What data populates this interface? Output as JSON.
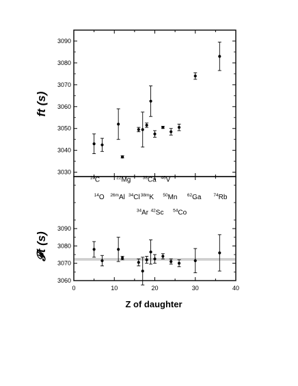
{
  "chart_data": [
    {
      "type": "scatter",
      "panel": "top",
      "title": "",
      "xlabel": "",
      "ylabel": "ft (s)",
      "xlim": [
        0,
        40
      ],
      "ylim": [
        3028,
        3095
      ],
      "yticks": [
        3030,
        3040,
        3050,
        3060,
        3070,
        3080,
        3090
      ],
      "grid": false,
      "series": [
        {
          "points": [
            {
              "x": 5,
              "y": 3043,
              "err": 4.5
            },
            {
              "x": 7,
              "y": 3042.5,
              "err": 3
            },
            {
              "x": 11,
              "y": 3052,
              "err": 7
            },
            {
              "x": 12,
              "y": 3037,
              "err": 0.5
            },
            {
              "x": 16,
              "y": 3049.5,
              "err": 1
            },
            {
              "x": 17,
              "y": 3049.5,
              "err": 8
            },
            {
              "x": 18,
              "y": 3051.5,
              "err": 1
            },
            {
              "x": 19,
              "y": 3062.5,
              "err": 7
            },
            {
              "x": 20,
              "y": 3047.5,
              "err": 1.5
            },
            {
              "x": 22,
              "y": 3050.5,
              "err": 0.5
            },
            {
              "x": 24,
              "y": 3048.5,
              "err": 1.5
            },
            {
              "x": 26,
              "y": 3050.5,
              "err": 1.5
            },
            {
              "x": 30,
              "y": 3074,
              "err": 1.5
            },
            {
              "x": 36,
              "y": 3083,
              "err": 6.5
            }
          ]
        }
      ]
    },
    {
      "type": "scatter",
      "panel": "bottom",
      "title": "",
      "xlabel": "Z of daughter",
      "ylabel": "𝓕t (s)",
      "xlim": [
        0,
        40
      ],
      "ylim": [
        3060,
        3120
      ],
      "yticks": [
        3060,
        3070,
        3080,
        3090
      ],
      "xticks": [
        0,
        10,
        20,
        30,
        40
      ],
      "grid": false,
      "band": {
        "y_low": 3071.5,
        "y_high": 3073.0
      },
      "series": [
        {
          "points": [
            {
              "x": 5,
              "y": 3078,
              "err": 4.5
            },
            {
              "x": 7,
              "y": 3071.5,
              "err": 3
            },
            {
              "x": 11,
              "y": 3078,
              "err": 7
            },
            {
              "x": 12,
              "y": 3073,
              "err": 1
            },
            {
              "x": 16,
              "y": 3070.5,
              "err": 2
            },
            {
              "x": 17,
              "y": 3065.5,
              "err": 8
            },
            {
              "x": 18,
              "y": 3072,
              "err": 2
            },
            {
              "x": 19,
              "y": 3076.5,
              "err": 7
            },
            {
              "x": 20,
              "y": 3072.5,
              "err": 2.5
            },
            {
              "x": 22,
              "y": 3074,
              "err": 1.5
            },
            {
              "x": 24,
              "y": 3071,
              "err": 1.5
            },
            {
              "x": 26,
              "y": 3070,
              "err": 2
            },
            {
              "x": 30,
              "y": 3071.5,
              "err": 7
            },
            {
              "x": 36,
              "y": 3076,
              "err": 10.5
            }
          ]
        }
      ],
      "annotations": [
        {
          "sup": "10",
          "text": "C",
          "x": 4,
          "y": 3117
        },
        {
          "sup": "22",
          "text": "Mg",
          "x": 10.5,
          "y": 3117
        },
        {
          "sup": "38",
          "text": "Ca",
          "x": 17,
          "y": 3117
        },
        {
          "sup": "46",
          "text": "V",
          "x": 21.5,
          "y": 3117
        },
        {
          "sup": "14",
          "text": "O",
          "x": 5,
          "y": 3107
        },
        {
          "sup": "26m",
          "text": "Al",
          "x": 9,
          "y": 3107
        },
        {
          "sup": "34",
          "text": "Cl",
          "x": 13.5,
          "y": 3107
        },
        {
          "sup": "38m",
          "text": "K",
          "x": 16.5,
          "y": 3107
        },
        {
          "sup": "50",
          "text": "Mn",
          "x": 22,
          "y": 3107
        },
        {
          "sup": "62",
          "text": "Ga",
          "x": 28,
          "y": 3107
        },
        {
          "sup": "74",
          "text": "Rb",
          "x": 34.5,
          "y": 3107
        },
        {
          "sup": "34",
          "text": "Ar",
          "x": 15.5,
          "y": 3098
        },
        {
          "sup": "42",
          "text": "Sc",
          "x": 19,
          "y": 3098
        },
        {
          "sup": "54",
          "text": "Co",
          "x": 24.5,
          "y": 3098
        }
      ]
    }
  ]
}
